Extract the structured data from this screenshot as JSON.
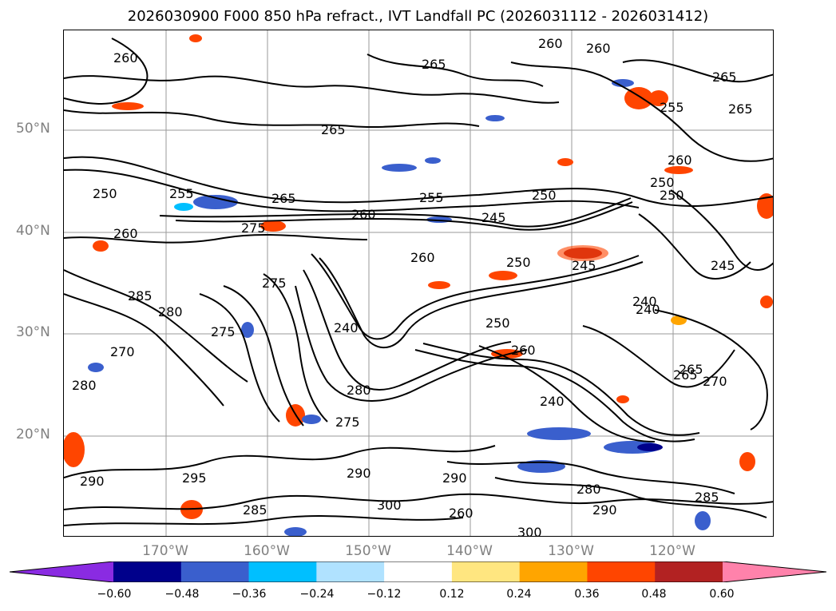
{
  "title": "2026030900 F000 850 hPa refract., IVT Landfall PC (2026031112 - 2026031412)",
  "lat_labels": [
    "50°N",
    "40°N",
    "30°N",
    "20°N"
  ],
  "lon_labels": [
    "170°W",
    "160°W",
    "150°W",
    "140°W",
    "130°W",
    "120°W"
  ],
  "colorbar": {
    "colors": [
      "#8a2be2",
      "#00008b",
      "#3a5fcd",
      "#00bfff",
      "#b0e2ff",
      "#ffffff",
      "#ffe680",
      "#ffa500",
      "#ff4500",
      "#b22222",
      "#ff82ab"
    ],
    "ticks": [
      "−0.60",
      "−0.48",
      "−0.36",
      "−0.24",
      "−0.12",
      "0.12",
      "0.24",
      "0.36",
      "0.48",
      "0.60"
    ]
  },
  "contour_labels": [
    "260",
    "265",
    "250",
    "255",
    "265",
    "255",
    "260",
    "265",
    "245",
    "250",
    "275",
    "260",
    "260",
    "250",
    "245",
    "240",
    "285",
    "280",
    "275",
    "270",
    "275",
    "280",
    "240",
    "250",
    "260",
    "265",
    "240",
    "280",
    "275",
    "290",
    "290",
    "290",
    "295",
    "285",
    "300",
    "290",
    "280",
    "285",
    "300",
    "260",
    "265",
    "260",
    "250",
    "245",
    "240",
    "265",
    "260",
    "270",
    "250",
    "255",
    "260",
    "265"
  ],
  "colors": {
    "contour": "#000000",
    "grid": "#9a9a9a",
    "label": "#808080"
  }
}
